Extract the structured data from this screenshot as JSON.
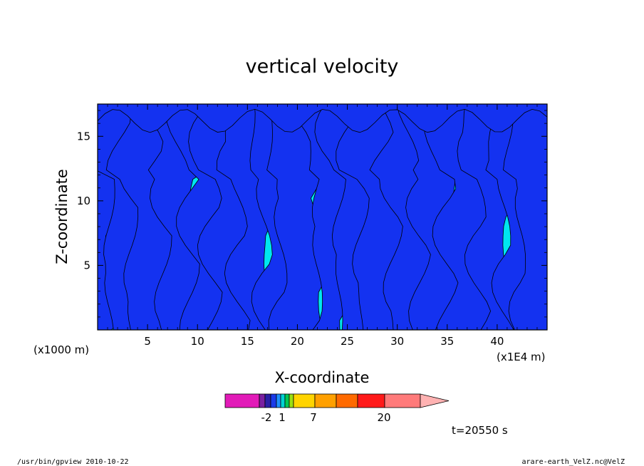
{
  "chart_data": {
    "type": "heatmap",
    "title": "vertical velocity",
    "xlabel": "X-coordinate",
    "ylabel": "Z-coordinate",
    "x_unit": "(x1E4 m)",
    "y_unit": "(x1000 m)",
    "xlim": [
      0,
      45
    ],
    "ylim": [
      0,
      17.5
    ],
    "x_ticks": [
      5,
      10,
      15,
      20,
      25,
      30,
      35,
      40
    ],
    "y_ticks": [
      5,
      10,
      15
    ],
    "y_tick_labels": [
      "5",
      "10",
      "15"
    ],
    "x_tick_labels": [
      "5",
      "10",
      "15",
      "20",
      "25",
      "30",
      "35",
      "40"
    ],
    "colorbar": {
      "tick_labels": [
        "-2",
        "1",
        "7",
        "20"
      ],
      "colors": [
        "#e21bb8",
        "#7a1fa0",
        "#2a1fa6",
        "#1a3ae8",
        "#1e90ff",
        "#00d2d2",
        "#00c853",
        "#9be012",
        "#ffd400",
        "#ffa000",
        "#ff6a00",
        "#ff1a1a",
        "#ff7a7a",
        "#ffb2b2"
      ]
    },
    "field_colors": {
      "negative": "#00e6f0",
      "positive": "#1432f0"
    },
    "updraft_bands_x": [
      0.5,
      3,
      5.5,
      8,
      11,
      13.5,
      15.5,
      18.5,
      20.5,
      23.5,
      26,
      28.5,
      31,
      34,
      37,
      39.5,
      42.5,
      44.5
    ]
  },
  "time_label": "t=20550 s",
  "footer": {
    "left": "/usr/bin/gpview   2010-10-22",
    "right": "arare-earth_VelZ.nc@VelZ"
  }
}
